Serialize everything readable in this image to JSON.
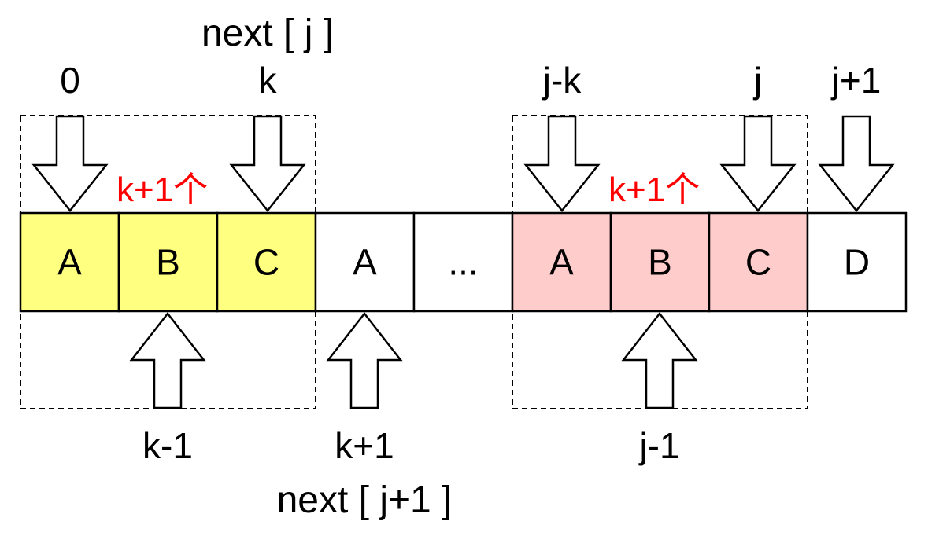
{
  "diagram": {
    "title_top": "next [ j ]",
    "title_bottom": "next [ j+1 ]",
    "colors": {
      "prefix_fill": "#FFFF80",
      "suffix_fill": "#FFCCCC",
      "plain_fill": "#FFFFFF",
      "annotation": "#FF0000",
      "stroke": "#000000"
    },
    "cells": [
      {
        "text": "A",
        "fill": "#FFFF80"
      },
      {
        "text": "B",
        "fill": "#FFFF80"
      },
      {
        "text": "C",
        "fill": "#FFFF80"
      },
      {
        "text": "A",
        "fill": "#FFFFFF"
      },
      {
        "text": "...",
        "fill": "#FFFFFF"
      },
      {
        "text": "A",
        "fill": "#FFCCCC"
      },
      {
        "text": "B",
        "fill": "#FFCCCC"
      },
      {
        "text": "C",
        "fill": "#FFCCCC"
      },
      {
        "text": "D",
        "fill": "#FFFFFF"
      }
    ],
    "top_labels": {
      "zero": "0",
      "k": "k",
      "j_minus_k": "j-k",
      "j": "j",
      "j_plus_1": "j+1"
    },
    "bottom_labels": {
      "k_minus_1": "k-1",
      "k_plus_1": "k+1",
      "j_minus_1": "j-1"
    },
    "annotations": {
      "left_count": "k+1个",
      "right_count": "k+1个"
    }
  }
}
